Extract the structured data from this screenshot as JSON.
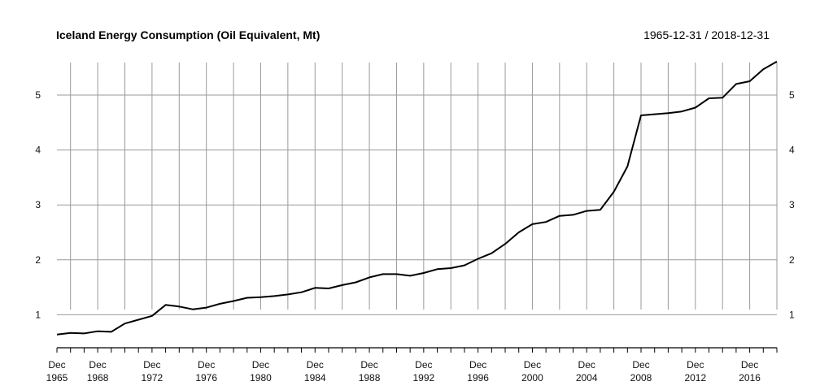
{
  "chart_data": {
    "type": "line",
    "title": "Iceland Energy Consumption (Oil Equivalent, Mt)",
    "date_range": "1965-12-31 / 2018-12-31",
    "xlabel": "",
    "ylabel": "",
    "grid": true,
    "ylim": [
      0.4,
      5.65
    ],
    "y_ticks": [
      1,
      2,
      3,
      4,
      5
    ],
    "x_ticks": [
      {
        "month": "Dec",
        "year": "1965",
        "x": 1965
      },
      {
        "month": "Dec",
        "year": "1968",
        "x": 1968
      },
      {
        "month": "Dec",
        "year": "1972",
        "x": 1972
      },
      {
        "month": "Dec",
        "year": "1976",
        "x": 1976
      },
      {
        "month": "Dec",
        "year": "1980",
        "x": 1980
      },
      {
        "month": "Dec",
        "year": "1984",
        "x": 1984
      },
      {
        "month": "Dec",
        "year": "1988",
        "x": 1988
      },
      {
        "month": "Dec",
        "year": "1992",
        "x": 1992
      },
      {
        "month": "Dec",
        "year": "1996",
        "x": 1996
      },
      {
        "month": "Dec",
        "year": "2000",
        "x": 2000
      },
      {
        "month": "Dec",
        "year": "2004",
        "x": 2004
      },
      {
        "month": "Dec",
        "year": "2008",
        "x": 2008
      },
      {
        "month": "Dec",
        "year": "2012",
        "x": 2012
      },
      {
        "month": "Dec",
        "year": "2016",
        "x": 2016
      }
    ],
    "series": [
      {
        "x": [
          1965,
          1966,
          1967,
          1968,
          1969,
          1970,
          1971,
          1972,
          1973,
          1974,
          1975,
          1976,
          1977,
          1978,
          1979,
          1980,
          1981,
          1982,
          1983,
          1984,
          1985,
          1986,
          1987,
          1988,
          1989,
          1990,
          1991,
          1992,
          1993,
          1994,
          1995,
          1996,
          1997,
          1998,
          1999,
          2000,
          2001,
          2002,
          2003,
          2004,
          2005,
          2006,
          2007,
          2008,
          2009,
          2010,
          2011,
          2012,
          2013,
          2014,
          2015,
          2016,
          2017,
          2018
        ],
        "values": [
          0.64,
          0.67,
          0.66,
          0.7,
          0.69,
          0.84,
          0.91,
          0.98,
          1.18,
          1.15,
          1.1,
          1.13,
          1.2,
          1.25,
          1.31,
          1.32,
          1.34,
          1.37,
          1.41,
          1.49,
          1.48,
          1.54,
          1.59,
          1.68,
          1.74,
          1.74,
          1.71,
          1.76,
          1.83,
          1.85,
          1.9,
          2.02,
          2.12,
          2.29,
          2.5,
          2.65,
          2.69,
          2.8,
          2.82,
          2.89,
          2.91,
          3.24,
          3.7,
          4.63,
          4.65,
          4.67,
          4.7,
          4.77,
          4.94,
          4.95,
          5.2,
          5.25,
          5.47,
          5.61
        ]
      }
    ]
  }
}
